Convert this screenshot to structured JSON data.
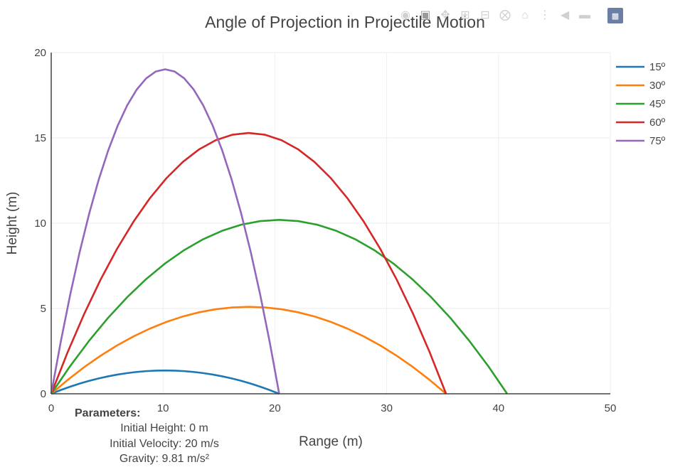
{
  "chart_data": {
    "type": "line",
    "title": "Angle of Projection in Projectile Motion",
    "xlabel": "Range (m)",
    "ylabel": "Height (m)",
    "xlim": [
      0,
      50
    ],
    "ylim": [
      0,
      20
    ],
    "xticks": [
      0,
      10,
      20,
      30,
      40,
      50
    ],
    "yticks": [
      0,
      5,
      10,
      15,
      20
    ],
    "grid": true,
    "legend_position": "top-right",
    "series": [
      {
        "name": "15º",
        "color": "#1f77b4",
        "angle_deg": 15
      },
      {
        "name": "30º",
        "color": "#ff7f0e",
        "angle_deg": 30
      },
      {
        "name": "45º",
        "color": "#2ca02c",
        "angle_deg": 45
      },
      {
        "name": "60º",
        "color": "#d62728",
        "angle_deg": 60
      },
      {
        "name": "75º",
        "color": "#9467bd",
        "angle_deg": 75
      }
    ],
    "params": {
      "heading": "Parameters:",
      "height_line": "Initial Height: 0 m",
      "velocity_line": "Initial Velocity: 20 m/s",
      "gravity_line": "Gravity: 9.81 m/s²",
      "v0": 20,
      "h0": 0,
      "g": 9.81
    }
  },
  "modebar": {
    "buttons": [
      "camera-icon",
      "zoom-icon",
      "pan-icon",
      "zoom-in-icon",
      "zoom-out-icon",
      "autoscale-icon",
      "home-icon",
      "spike-lines-icon",
      "hover-closest-icon",
      "hover-compare-icon"
    ],
    "logo": "plotly-logo-icon"
  }
}
